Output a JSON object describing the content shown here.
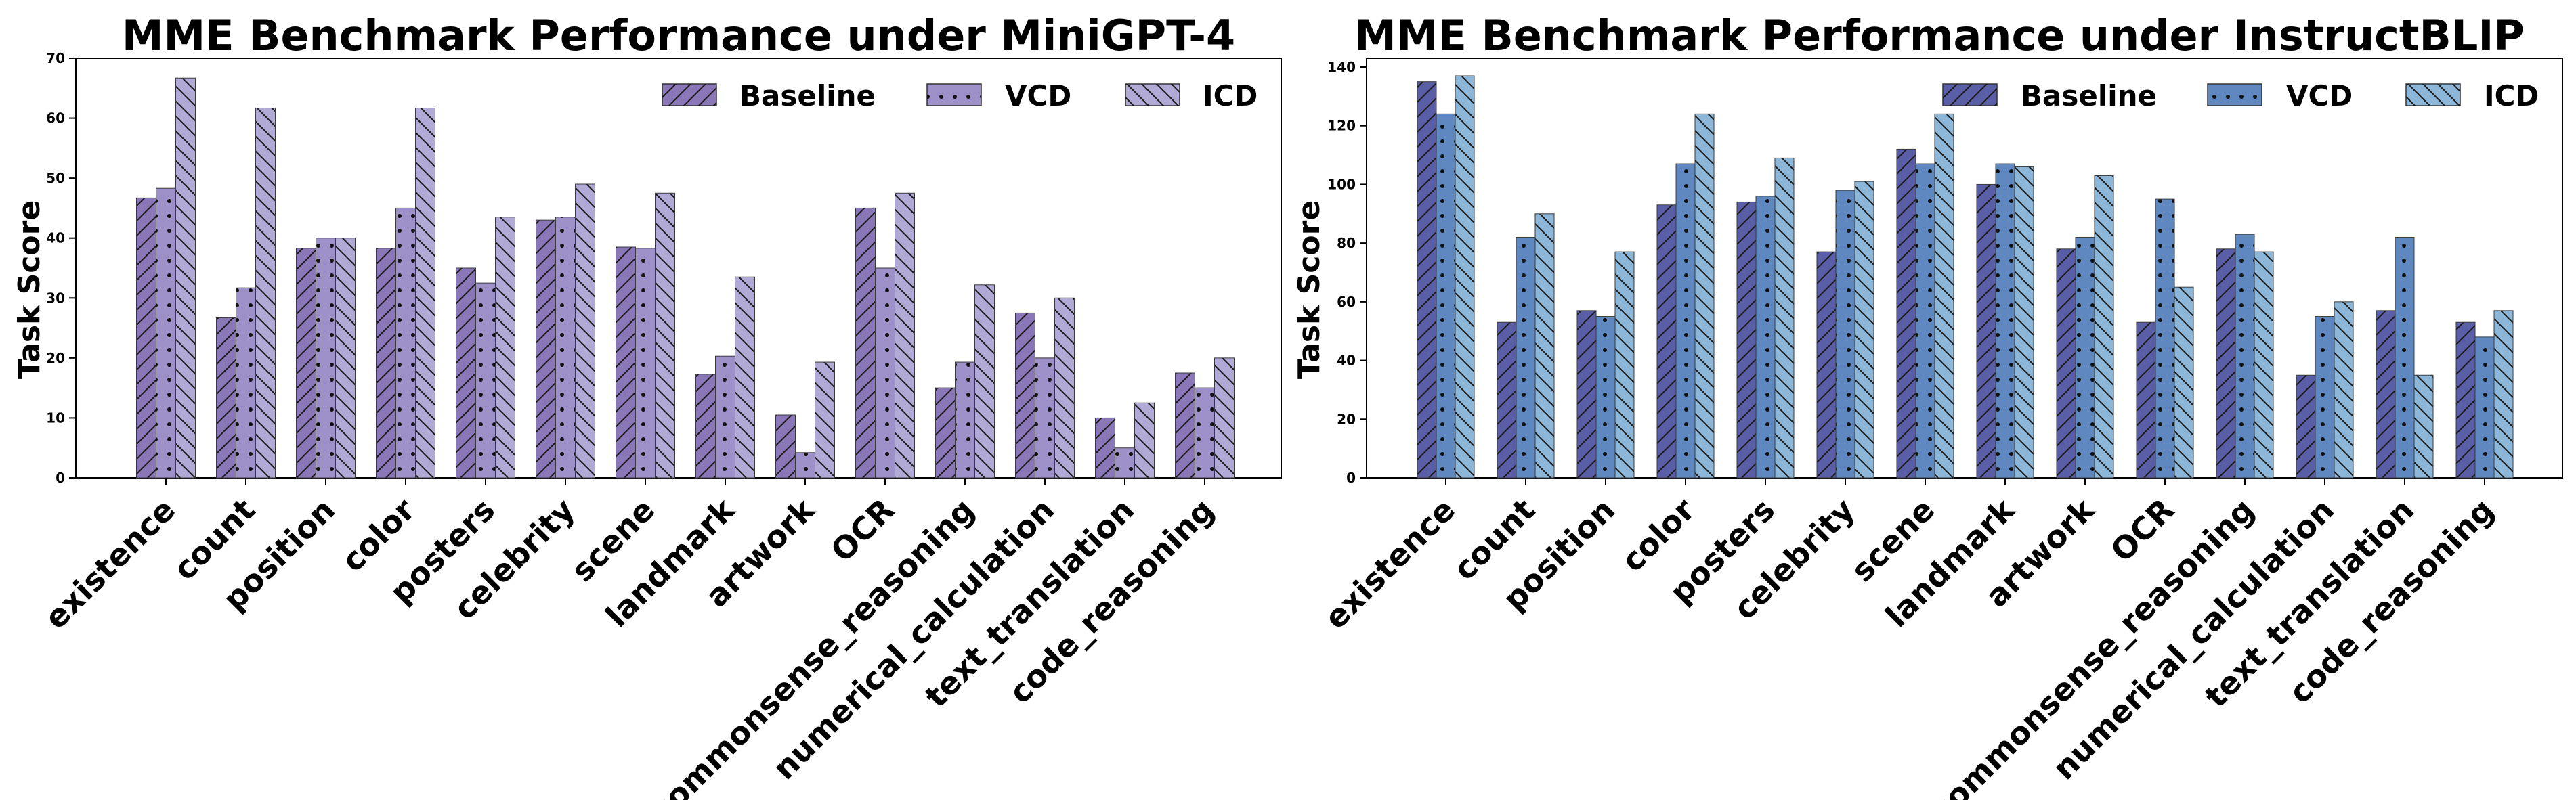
{
  "chart_data": [
    {
      "type": "bar",
      "title": "MME Benchmark Performance under MiniGPT-4",
      "xlabel": "",
      "ylabel": "Task Score",
      "ylim": [
        0,
        70
      ],
      "yticks": [
        "0",
        "10",
        "20",
        "30",
        "40",
        "50",
        "60",
        "70"
      ],
      "grid": false,
      "legend_position": "top-right",
      "categories": [
        "existence",
        "count",
        "position",
        "color",
        "posters",
        "celebrity",
        "scene",
        "landmark",
        "artwork",
        "OCR",
        "commonsense_reasoning",
        "numerical_calculation",
        "text_translation",
        "code_reasoning"
      ],
      "series": [
        {
          "name": "Baseline",
          "color": "#8a77b8",
          "hatch": "diagonal",
          "values": [
            46.7,
            26.7,
            38.3,
            38.3,
            35.0,
            43.0,
            38.5,
            17.3,
            10.5,
            45.0,
            15.0,
            27.5,
            10.0,
            17.5
          ]
        },
        {
          "name": "VCD",
          "color": "#9e90c8",
          "hatch": "dots",
          "values": [
            48.3,
            31.7,
            40.0,
            45.0,
            32.5,
            43.5,
            38.3,
            20.3,
            4.2,
            35.0,
            19.3,
            20.0,
            5.0,
            15.0
          ]
        },
        {
          "name": "ICD",
          "color": "#b1a9d6",
          "hatch": "backslash",
          "values": [
            66.7,
            61.7,
            40.0,
            61.7,
            43.5,
            49.0,
            47.5,
            33.5,
            19.3,
            47.5,
            32.2,
            30.0,
            12.5,
            20.0
          ]
        }
      ]
    },
    {
      "type": "bar",
      "title": "MME Benchmark Performance under InstructBLIP",
      "xlabel": "",
      "ylabel": "Task Score",
      "ylim": [
        0,
        143
      ],
      "yticks": [
        "0",
        "20",
        "40",
        "60",
        "80",
        "100",
        "120",
        "140"
      ],
      "grid": false,
      "legend_position": "top-right",
      "categories": [
        "existence",
        "count",
        "position",
        "color",
        "posters",
        "celebrity",
        "scene",
        "landmark",
        "artwork",
        "OCR",
        "commonsense_reasoning",
        "numerical_calculation",
        "text_translation",
        "code_reasoning"
      ],
      "series": [
        {
          "name": "Baseline",
          "color": "#5a5ea6",
          "hatch": "diagonal",
          "values": [
            135,
            53,
            57,
            93,
            94,
            77,
            112,
            100,
            78,
            53,
            78,
            35,
            57,
            53
          ]
        },
        {
          "name": "VCD",
          "color": "#5e88bf",
          "hatch": "dots",
          "values": [
            124,
            82,
            55,
            107,
            96,
            98,
            107,
            107,
            82,
            95,
            83,
            55,
            82,
            48
          ]
        },
        {
          "name": "ICD",
          "color": "#8db7d9",
          "hatch": "backslash",
          "values": [
            137,
            90,
            77,
            124,
            109,
            101,
            124,
            106,
            103,
            65,
            77,
            60,
            35,
            57
          ]
        }
      ]
    }
  ]
}
